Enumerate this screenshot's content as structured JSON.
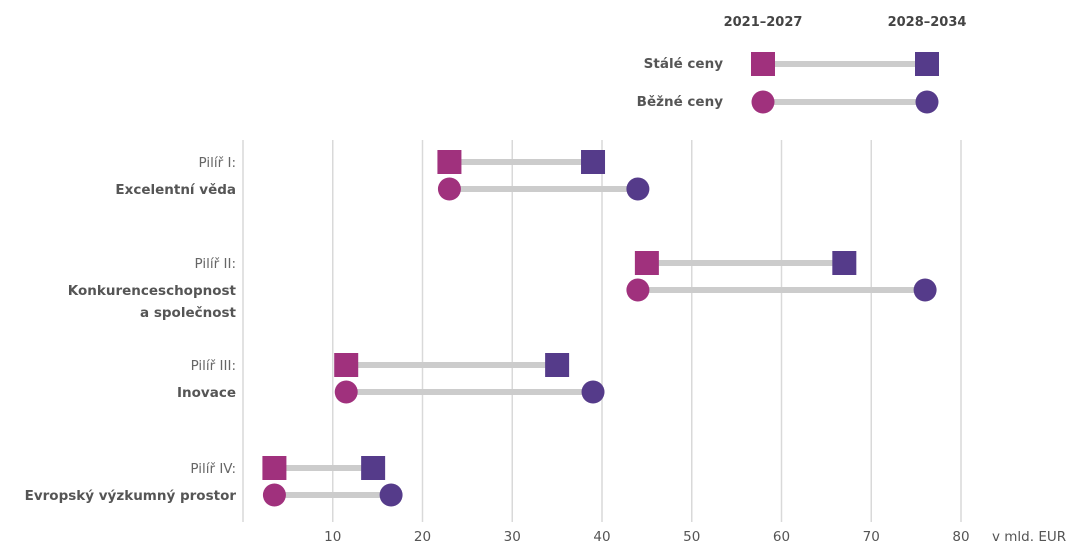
{
  "chart_data": {
    "type": "dumbbell",
    "unit": "v mld. EUR",
    "xlim": [
      0,
      80
    ],
    "x_ticks": [
      10,
      20,
      30,
      40,
      50,
      60,
      70,
      80
    ],
    "grid": true,
    "legend": {
      "placement": "top-right",
      "period_start": "2021–2027",
      "period_end": "2028–2034",
      "constant_label": "Stálé ceny",
      "current_label": "Běžné ceny"
    },
    "colors": {
      "start": "#a0317d",
      "end": "#553b8a",
      "connector": "#cccccc",
      "grid": "#d9d9d9"
    },
    "categories": [
      {
        "prefix": "Pilíř I:",
        "name_lines": [
          "Excelentní věda"
        ],
        "constant": [
          23,
          39
        ],
        "current": [
          23,
          44
        ]
      },
      {
        "prefix": "Pilíř II:",
        "name_lines": [
          "Konkurenceschopnost",
          "a společnost"
        ],
        "constant": [
          45,
          67
        ],
        "current": [
          44,
          76
        ]
      },
      {
        "prefix": "Pilíř III:",
        "name_lines": [
          "Inovace"
        ],
        "constant": [
          11.5,
          35
        ],
        "current": [
          11.5,
          39
        ]
      },
      {
        "prefix": "Pilíř IV:",
        "name_lines": [
          "Evropský výzkumný prostor"
        ],
        "constant": [
          3.5,
          14.5
        ],
        "current": [
          3.5,
          16.5
        ]
      }
    ]
  }
}
